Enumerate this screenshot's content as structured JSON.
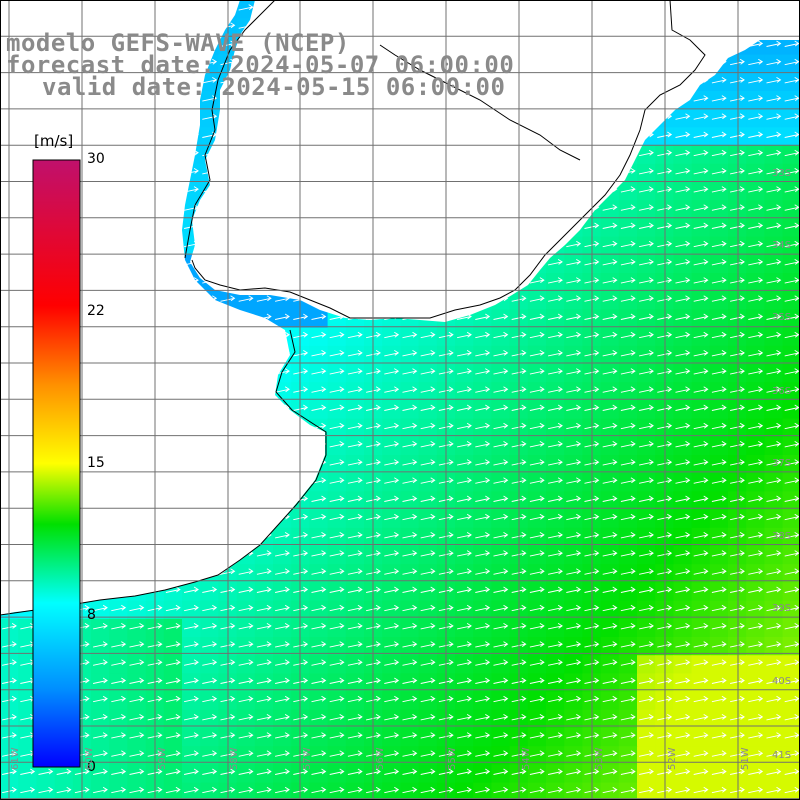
{
  "title": {
    "line1": "modelo GEFS-WAVE (NCEP)",
    "line2": "forecast date: 2024-05-07 06:00:00",
    "line3": "valid date: 2024-05-15 06:00:00"
  },
  "colorbar": {
    "units": "[m/s]",
    "ticks": [
      {
        "value": 30,
        "label": "30"
      },
      {
        "value": 22,
        "label": "22"
      },
      {
        "value": 15,
        "label": "15"
      },
      {
        "value": 8,
        "label": "8"
      },
      {
        "value": 0,
        "label": "0"
      }
    ],
    "colors": [
      "#0000ff",
      "#00a0ff",
      "#00ffff",
      "#00e000",
      "#ffff00",
      "#ff8000",
      "#ff0000",
      "#c0106c"
    ]
  },
  "map": {
    "land_color": "#ffffff",
    "grid_color": "#707070",
    "arrow_color": "#ffffff",
    "lat_labels": [
      "33S",
      "34S",
      "35S",
      "36S",
      "37S",
      "38S",
      "39S",
      "40S",
      "41S"
    ],
    "lon_labels": [
      "61W",
      "60W",
      "59W",
      "58W",
      "57W",
      "56W",
      "55W",
      "54W",
      "53W",
      "52W",
      "51W"
    ]
  }
}
